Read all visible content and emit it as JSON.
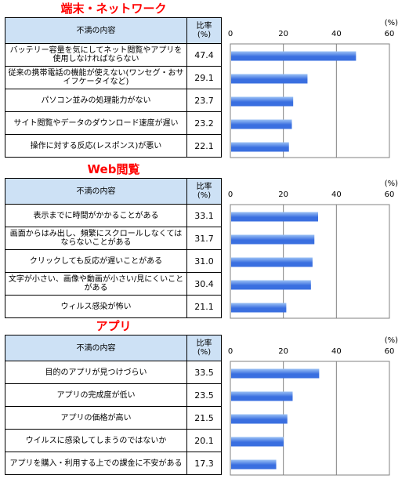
{
  "header": {
    "desc_label": "不満の内容",
    "val_label_1": "比率",
    "val_label_2": "(%)"
  },
  "unit_label": "(%)",
  "colors": {
    "title": "#ff0000",
    "header_bg": "#cde1f5",
    "bar": "#3a6fe0",
    "bar_light": "#9cc2f5"
  },
  "chart_data": [
    {
      "type": "bar",
      "orientation": "horizontal",
      "title": "端末・ネットワーク",
      "xlim": [
        0,
        60
      ],
      "xticks": [
        0,
        20,
        40,
        60
      ],
      "grid": true,
      "categories": [
        "バッテリー容量を気にしてネット閲覧やアプリを使用しなければならない",
        "従来の携帯電話の機能が使えない(ワンセグ・おサイフケータイなど)",
        "パソコン並みの処理能力がない",
        "サイト閲覧やデータのダウンロード速度が遅い",
        "操作に対する反応(レスポンス)が悪い"
      ],
      "values": [
        47.4,
        29.1,
        23.7,
        23.2,
        22.1
      ],
      "labels": [
        "47.4",
        "29.1",
        "23.7",
        "23.2",
        "22.1"
      ]
    },
    {
      "type": "bar",
      "orientation": "horizontal",
      "title": "Web閲覧",
      "xlim": [
        0,
        60
      ],
      "xticks": [
        0,
        20,
        40,
        60
      ],
      "grid": true,
      "categories": [
        "表示までに時間がかかることがある",
        "画面からはみ出し、頻繁にスクロールしなくてはならないことがある",
        "クリックしても反応が遅いことがある",
        "文字が小さい、画像や動画が小さい/見にくいことがある",
        "ウィルス感染が怖い"
      ],
      "values": [
        33.1,
        31.7,
        31.0,
        30.4,
        21.1
      ],
      "labels": [
        "33.1",
        "31.7",
        "31.0",
        "30.4",
        "21.1"
      ]
    },
    {
      "type": "bar",
      "orientation": "horizontal",
      "title": "アプリ",
      "xlim": [
        0,
        60
      ],
      "xticks": [
        0,
        20,
        40,
        60
      ],
      "grid": true,
      "categories": [
        "目的のアプリが見つけづらい",
        "アプリの完成度が低い",
        "アプリの価格が高い",
        "ウイルスに感染してしまうのではないか",
        "アプリを購入・利用する上での課金に不安がある"
      ],
      "values": [
        33.5,
        23.5,
        21.5,
        20.1,
        17.3
      ],
      "labels": [
        "33.5",
        "23.5",
        "21.5",
        "20.1",
        "17.3"
      ]
    }
  ]
}
